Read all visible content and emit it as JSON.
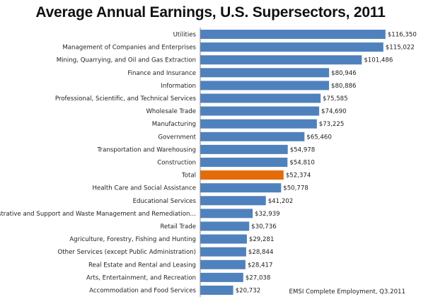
{
  "chart_data": {
    "type": "bar",
    "orientation": "horizontal",
    "title": "Average Annual Earnings, U.S. Supersectors, 2011",
    "value_prefix": "$",
    "categories": [
      "Utilities",
      "Management of Companies and Enterprises",
      "Mining, Quarrying, and Oil and Gas Extraction",
      "Finance and Insurance",
      "Information",
      "Professional, Scientific, and Technical Services",
      "Wholesale Trade",
      "Manufacturing",
      "Government",
      "Transportation and Warehousing",
      "Construction",
      "Total",
      "Health Care and Social Assistance",
      "Educational Services",
      "Administrative and Support and Waste Management and Remediation…",
      "Retail Trade",
      "Agriculture, Forestry, Fishing and Hunting",
      "Other Services (except Public Administration)",
      "Real Estate and Rental and Leasing",
      "Arts, Entertainment, and Recreation",
      "Accommodation and Food Services"
    ],
    "values": [
      116350,
      115022,
      101486,
      80946,
      80886,
      75585,
      74690,
      73225,
      65460,
      54978,
      54810,
      52374,
      50778,
      41202,
      32939,
      30736,
      29281,
      28844,
      28417,
      27038,
      20732
    ],
    "highlight_category": "Total",
    "colors": {
      "bar": "#4F81BD",
      "highlight": "#E36C09"
    },
    "xlim": [
      0,
      120000
    ],
    "grid": false,
    "legend": "none",
    "annotation": "EMSI Complete Employment, Q3.2011"
  }
}
